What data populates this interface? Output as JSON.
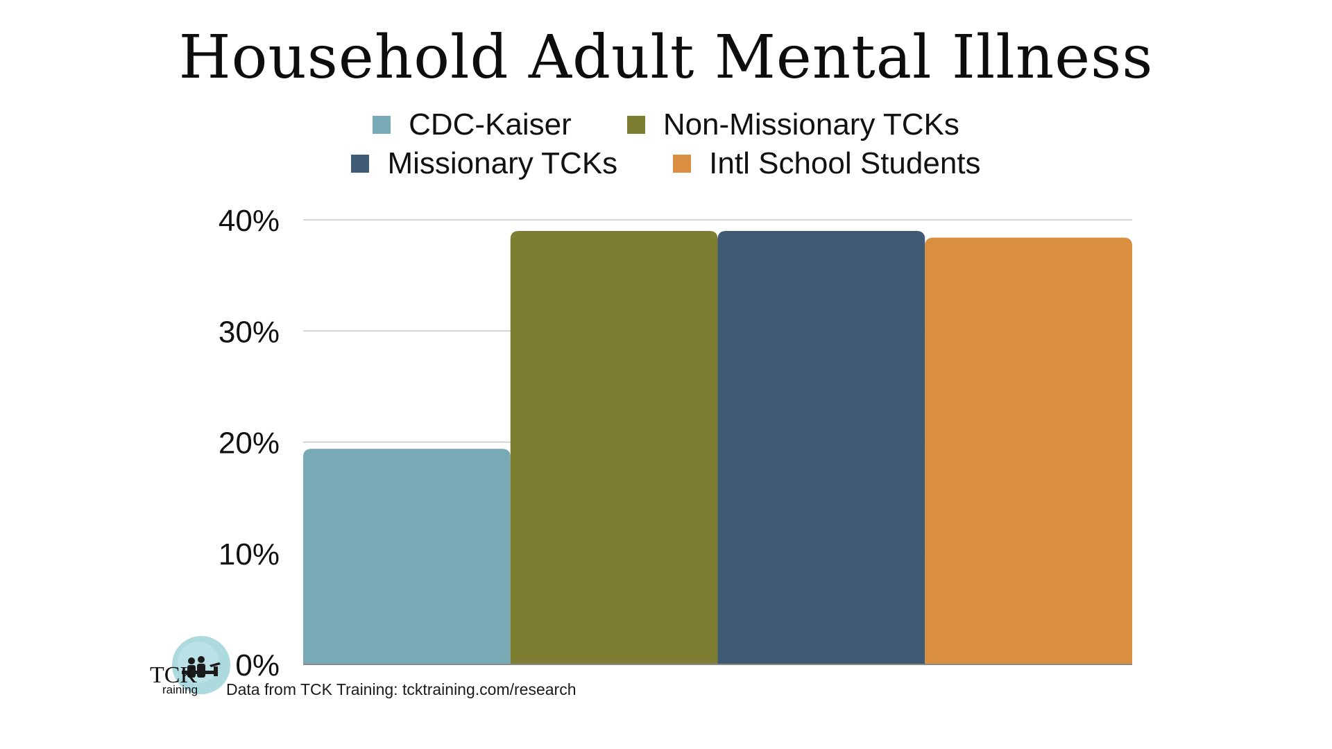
{
  "chart_data": {
    "type": "bar",
    "title": "Household Adult Mental Illness",
    "xlabel": "",
    "ylabel": "",
    "ylim": [
      0,
      40
    ],
    "yticks": [
      0,
      10,
      20,
      30,
      40
    ],
    "ytick_labels": [
      "0%",
      "10%",
      "20%",
      "30%",
      "40%"
    ],
    "grid": true,
    "legend_position": "top-center",
    "categories": [
      "CDC-Kaiser",
      "Non-Missionary TCKs",
      "Missionary TCKs",
      "Intl School Students"
    ],
    "series": [
      {
        "name": "CDC-Kaiser",
        "value": 19.4,
        "color": "#78aab6"
      },
      {
        "name": "Non-Missionary TCKs",
        "value": 39.0,
        "color": "#7d7e32"
      },
      {
        "name": "Missionary TCKs",
        "value": 39.0,
        "color": "#3f5a75"
      },
      {
        "name": "Intl School Students",
        "value": 38.4,
        "color": "#d98f3f"
      }
    ]
  },
  "legend": {
    "row1": [
      "CDC-Kaiser",
      "Non-Missionary TCKs"
    ],
    "row2": [
      "Missionary TCKs",
      "Intl School Students"
    ]
  },
  "footer": {
    "source": "Data from TCK Training: tcktraining.com/research",
    "logo_text_1": "TCK",
    "logo_text_2": "raining",
    "logo_icon": "tck-training-logo"
  },
  "colors": {
    "gridline": "#c8c8c8",
    "axis": "#888888",
    "logo_circle": "#9fd3d9"
  }
}
